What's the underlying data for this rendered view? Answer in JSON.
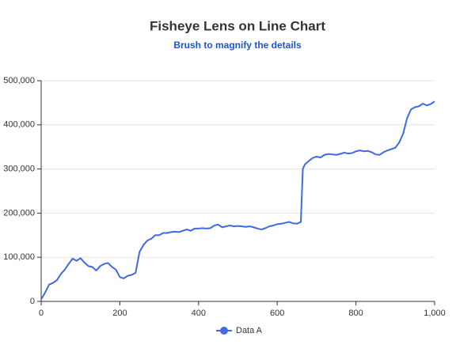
{
  "chart_data": {
    "type": "line",
    "title": "Fisheye Lens on Line Chart",
    "subtitle": "Brush to magnify the details",
    "x": [
      0,
      10,
      20,
      30,
      40,
      50,
      60,
      70,
      80,
      90,
      100,
      110,
      120,
      130,
      140,
      150,
      160,
      170,
      180,
      190,
      200,
      210,
      220,
      230,
      240,
      250,
      260,
      270,
      280,
      290,
      300,
      310,
      320,
      330,
      340,
      350,
      360,
      370,
      380,
      390,
      400,
      410,
      420,
      430,
      440,
      450,
      460,
      470,
      480,
      490,
      500,
      510,
      520,
      530,
      540,
      550,
      560,
      570,
      580,
      590,
      600,
      610,
      620,
      630,
      640,
      650,
      660,
      665,
      670,
      680,
      690,
      700,
      710,
      720,
      730,
      740,
      750,
      760,
      770,
      780,
      790,
      800,
      810,
      820,
      830,
      840,
      850,
      860,
      870,
      880,
      890,
      900,
      910,
      920,
      930,
      940,
      950,
      960,
      970,
      980,
      990,
      1000
    ],
    "series": [
      {
        "name": "Data A",
        "color": "#4169e1",
        "values": [
          5000,
          20000,
          38000,
          42000,
          48000,
          62000,
          72000,
          85000,
          97000,
          92000,
          98000,
          88000,
          80000,
          78000,
          70000,
          80000,
          85000,
          87000,
          78000,
          72000,
          55000,
          52000,
          58000,
          60000,
          65000,
          112000,
          128000,
          138000,
          142000,
          150000,
          150000,
          155000,
          155000,
          157000,
          158000,
          157000,
          160000,
          163000,
          160000,
          165000,
          165000,
          166000,
          165000,
          166000,
          172000,
          174000,
          168000,
          170000,
          172000,
          170000,
          171000,
          170000,
          169000,
          170000,
          168000,
          165000,
          163000,
          166000,
          170000,
          172000,
          175000,
          176000,
          178000,
          180000,
          177000,
          176000,
          180000,
          300000,
          310000,
          318000,
          325000,
          328000,
          326000,
          332000,
          334000,
          333000,
          332000,
          334000,
          337000,
          335000,
          336000,
          340000,
          342000,
          340000,
          341000,
          338000,
          333000,
          332000,
          338000,
          342000,
          345000,
          348000,
          360000,
          380000,
          415000,
          435000,
          440000,
          442000,
          448000,
          444000,
          447000,
          453000
        ]
      }
    ],
    "xlim": [
      0,
      1000
    ],
    "xticks": [
      0,
      200,
      400,
      600,
      800,
      {
        "value": 1000,
        "label": "1,000"
      }
    ],
    "ylim": [
      0,
      500000
    ],
    "yticks": [
      0,
      {
        "value": 100000,
        "label": "100,000"
      },
      {
        "value": 200000,
        "label": "200,000"
      },
      {
        "value": 300000,
        "label": "300,000"
      },
      {
        "value": 400000,
        "label": "400,000"
      },
      {
        "value": 500000,
        "label": "500,000"
      }
    ],
    "grid": true
  }
}
